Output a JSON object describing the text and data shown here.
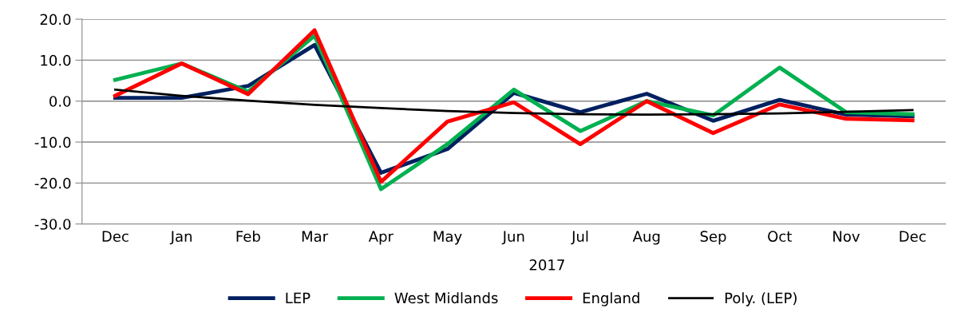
{
  "chart_data": {
    "type": "line",
    "categories": [
      "Dec",
      "Jan",
      "Feb",
      "Mar",
      "Apr",
      "May",
      "Jun",
      "Jul",
      "Aug",
      "Sep",
      "Oct",
      "Nov",
      "Dec"
    ],
    "series": [
      {
        "name": "LEP",
        "color": "#002060",
        "values": [
          0.8,
          0.8,
          3.7,
          13.7,
          -17.5,
          -11.7,
          2.0,
          -2.7,
          1.8,
          -4.8,
          0.3,
          -3.3,
          -3.7
        ]
      },
      {
        "name": "West Midlands",
        "color": "#00b050",
        "values": [
          5.2,
          9.2,
          2.3,
          16.0,
          -21.5,
          -10.5,
          2.8,
          -7.3,
          0.0,
          -3.5,
          8.2,
          -2.7,
          -3.2
        ]
      },
      {
        "name": "England",
        "color": "#ff0000",
        "values": [
          1.3,
          9.2,
          1.7,
          17.3,
          -19.7,
          -5.0,
          -0.3,
          -10.5,
          0.0,
          -7.8,
          -0.8,
          -4.3,
          -4.7
        ]
      },
      {
        "name": "Poly. (LEP)",
        "color": "#000000",
        "values": [
          2.8,
          1.3,
          0.1,
          -0.9,
          -1.7,
          -2.4,
          -2.9,
          -3.2,
          -3.3,
          -3.2,
          -3.0,
          -2.6,
          -2.2
        ]
      }
    ],
    "ylim": [
      -30,
      20
    ],
    "yticks": [
      {
        "value": -30,
        "label": "-30.0"
      },
      {
        "value": -20,
        "label": "-20.0"
      },
      {
        "value": -10,
        "label": "-10.0"
      },
      {
        "value": 0,
        "label": "0.0"
      },
      {
        "value": 10,
        "label": "10.0"
      },
      {
        "value": 20,
        "label": "20.0"
      }
    ],
    "annotations": [
      "2017"
    ],
    "grid": "y",
    "legend": "bottom",
    "marker": "none",
    "line_style": "solid"
  }
}
